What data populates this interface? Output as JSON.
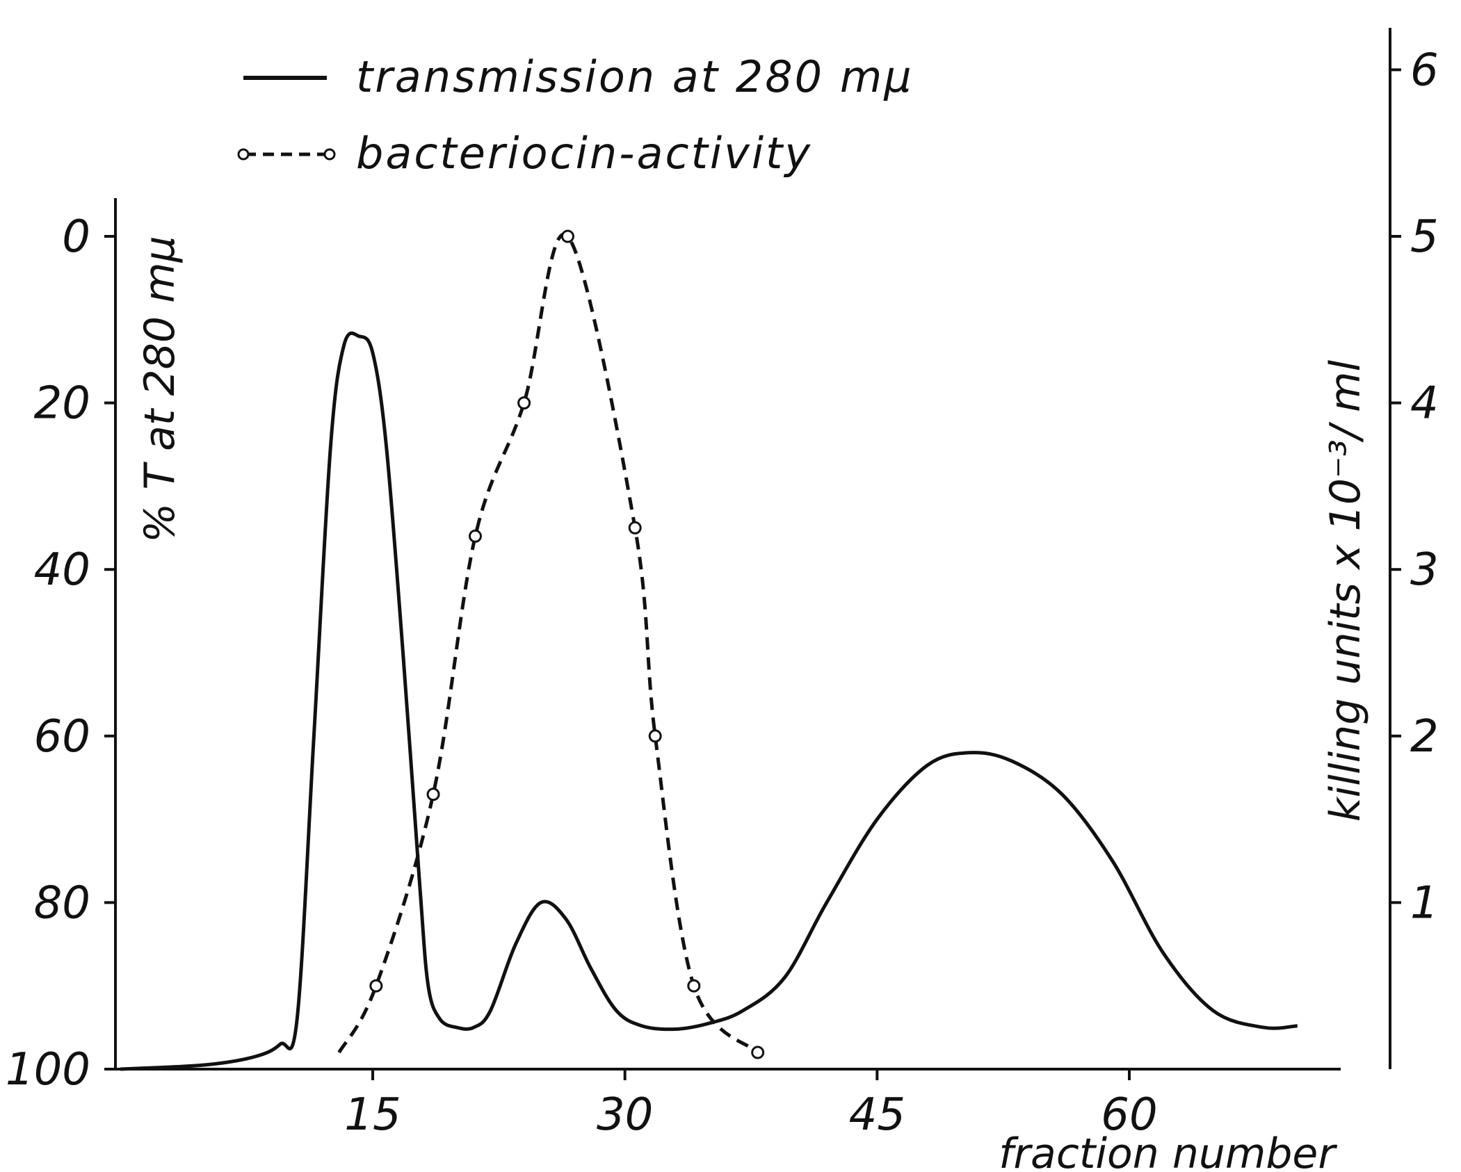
{
  "chart_data": {
    "type": "line",
    "title": "",
    "xlabel": "fraction number",
    "ylabel_left": "% T at 280 mμ",
    "ylabel_right": "killing units x 10⁻³/ ml",
    "xlim": [
      0,
      73
    ],
    "x_ticks": [
      15,
      30,
      45,
      60
    ],
    "x_tick_labels": [
      "15",
      "30",
      "45",
      "60"
    ],
    "ylim_left": [
      0,
      100
    ],
    "y_left_inverted": true,
    "y_left_ticks": [
      0,
      20,
      40,
      60,
      80,
      100
    ],
    "y_left_tick_labels": [
      "0",
      "20",
      "40",
      "60",
      "80",
      "100"
    ],
    "ylim_right": [
      0,
      6.2
    ],
    "y_right_ticks": [
      1,
      2,
      3,
      4,
      5,
      6
    ],
    "y_right_tick_labels": [
      "1",
      "2",
      "3",
      "4",
      "5",
      "6"
    ],
    "grid": false,
    "legend_position": "top",
    "series": [
      {
        "name": "transmission at 280 mμ",
        "axis": "left",
        "style": "solid",
        "color": "#111111",
        "x": [
          0,
          5,
          8,
          9.5,
          10.5,
          11.5,
          12.5,
          13.3,
          14.2,
          15,
          15.8,
          16.8,
          17.8,
          18.3,
          19,
          20,
          21,
          22,
          23.5,
          25,
          26.5,
          28,
          29.5,
          31,
          33,
          35,
          37,
          39.5,
          42,
          45,
          48,
          50.5,
          53,
          56,
          59,
          62,
          65,
          68,
          70
        ],
        "y": [
          100,
          99.5,
          98.5,
          97,
          94,
          60,
          25,
          13,
          12,
          14,
          25,
          50,
          78,
          90,
          94,
          95,
          95,
          93,
          85,
          80,
          82,
          88,
          93,
          94.8,
          95.2,
          94.5,
          93,
          89,
          80,
          70,
          63.5,
          62,
          63,
          67,
          75,
          86,
          93,
          95,
          94.8
        ]
      },
      {
        "name": "bacteriocin-activity",
        "axis": "right",
        "style": "dashed",
        "marker": "open-circle",
        "color": "#111111",
        "x": [
          13,
          15.2,
          18.6,
          21.1,
          24,
          26.6,
          30.6,
          31.8,
          34.1,
          37.9
        ],
        "y": [
          0.1,
          0.5,
          1.65,
          3.2,
          4,
          5,
          3.25,
          2,
          0.5,
          0.1
        ]
      }
    ]
  }
}
